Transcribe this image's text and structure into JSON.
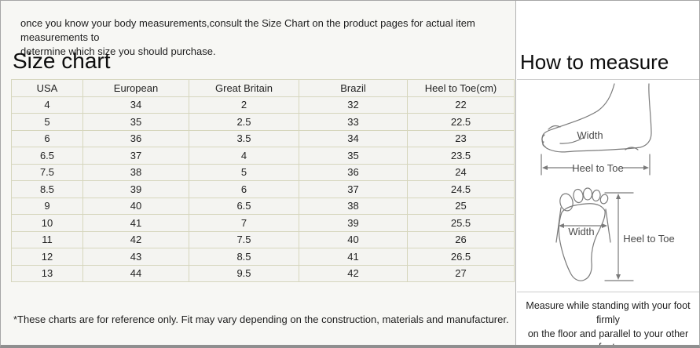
{
  "intro": {
    "text": "once you know your body measurements,consult the Size Chart on the product pages for actual item measurements to\ndetermine which size you should purchase."
  },
  "size_chart": {
    "title": "Size chart",
    "columns": [
      "USA",
      "European",
      "Great Britain",
      "Brazil",
      "Heel to Toe(cm)"
    ],
    "rows": [
      [
        "4",
        "34",
        "2",
        "32",
        "22"
      ],
      [
        "5",
        "35",
        "2.5",
        "33",
        "22.5"
      ],
      [
        "6",
        "36",
        "3.5",
        "34",
        "23"
      ],
      [
        "6.5",
        "37",
        "4",
        "35",
        "23.5"
      ],
      [
        "7.5",
        "38",
        "5",
        "36",
        "24"
      ],
      [
        "8.5",
        "39",
        "6",
        "37",
        "24.5"
      ],
      [
        "9",
        "40",
        "6.5",
        "38",
        "25"
      ],
      [
        "10",
        "41",
        "7",
        "39",
        "25.5"
      ],
      [
        "11",
        "42",
        "7.5",
        "40",
        "26"
      ],
      [
        "12",
        "43",
        "8.5",
        "41",
        "26.5"
      ],
      [
        "13",
        "44",
        "9.5",
        "42",
        "27"
      ]
    ],
    "footnote": "*These charts are for reference only. Fit may vary depending on the construction, materials and manufacturer."
  },
  "how_to_measure": {
    "title": "How to measure",
    "side_view_labels": {
      "width": "Width",
      "heel_to_toe": "Heel to Toe"
    },
    "top_view_labels": {
      "width": "Width",
      "heel_to_toe": "Heel to Toe"
    },
    "note": "Measure while standing with your foot firmly\non the floor and parallel to your other foot."
  },
  "colors": {
    "left_panel_bg": "#f7f7f4",
    "table_cell_bg": "#f4f4f1",
    "table_border": "#d6d6bd",
    "page_border": "#a6a6a6",
    "page_bottom_border": "#8f8f8f",
    "diagram_stroke": "#7a7a7a"
  }
}
